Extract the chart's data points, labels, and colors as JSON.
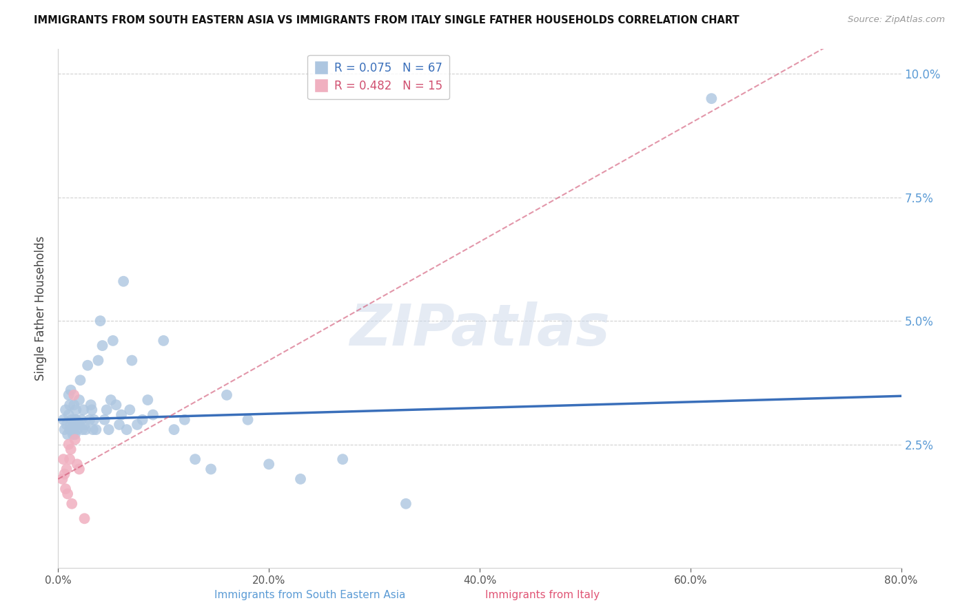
{
  "title": "IMMIGRANTS FROM SOUTH EASTERN ASIA VS IMMIGRANTS FROM ITALY SINGLE FATHER HOUSEHOLDS CORRELATION CHART",
  "source": "Source: ZipAtlas.com",
  "xlabel_blue": "Immigrants from South Eastern Asia",
  "xlabel_pink": "Immigrants from Italy",
  "ylabel": "Single Father Households",
  "blue_R": 0.075,
  "blue_N": 67,
  "pink_R": 0.482,
  "pink_N": 15,
  "xlim": [
    0,
    0.8
  ],
  "ylim": [
    0,
    0.105
  ],
  "yticks": [
    0.025,
    0.05,
    0.075,
    0.1
  ],
  "xticks": [
    0.0,
    0.2,
    0.4,
    0.6,
    0.8
  ],
  "blue_color": "#adc6e0",
  "blue_line_color": "#3a6fba",
  "pink_color": "#f0b0c0",
  "pink_line_color": "#d05070",
  "watermark": "ZIPatlas",
  "blue_x": [
    0.005,
    0.006,
    0.007,
    0.008,
    0.009,
    0.01,
    0.01,
    0.011,
    0.011,
    0.012,
    0.012,
    0.013,
    0.013,
    0.014,
    0.015,
    0.015,
    0.016,
    0.016,
    0.017,
    0.017,
    0.018,
    0.02,
    0.02,
    0.021,
    0.022,
    0.023,
    0.024,
    0.025,
    0.026,
    0.028,
    0.03,
    0.031,
    0.032,
    0.033,
    0.034,
    0.036,
    0.038,
    0.04,
    0.042,
    0.044,
    0.046,
    0.048,
    0.05,
    0.052,
    0.055,
    0.058,
    0.06,
    0.062,
    0.065,
    0.068,
    0.07,
    0.075,
    0.08,
    0.085,
    0.09,
    0.1,
    0.11,
    0.12,
    0.13,
    0.145,
    0.16,
    0.18,
    0.2,
    0.23,
    0.27,
    0.33,
    0.62
  ],
  "blue_y": [
    0.03,
    0.028,
    0.032,
    0.029,
    0.027,
    0.031,
    0.035,
    0.028,
    0.033,
    0.029,
    0.036,
    0.028,
    0.03,
    0.027,
    0.029,
    0.033,
    0.03,
    0.027,
    0.03,
    0.032,
    0.028,
    0.029,
    0.034,
    0.038,
    0.03,
    0.028,
    0.032,
    0.029,
    0.028,
    0.041,
    0.03,
    0.033,
    0.032,
    0.028,
    0.03,
    0.028,
    0.042,
    0.05,
    0.045,
    0.03,
    0.032,
    0.028,
    0.034,
    0.046,
    0.033,
    0.029,
    0.031,
    0.058,
    0.028,
    0.032,
    0.042,
    0.029,
    0.03,
    0.034,
    0.031,
    0.046,
    0.028,
    0.03,
    0.022,
    0.02,
    0.035,
    0.03,
    0.021,
    0.018,
    0.022,
    0.013,
    0.095
  ],
  "pink_x": [
    0.004,
    0.005,
    0.006,
    0.007,
    0.008,
    0.009,
    0.01,
    0.011,
    0.012,
    0.013,
    0.015,
    0.016,
    0.018,
    0.02,
    0.025
  ],
  "pink_y": [
    0.018,
    0.022,
    0.019,
    0.016,
    0.02,
    0.015,
    0.025,
    0.022,
    0.024,
    0.013,
    0.035,
    0.026,
    0.021,
    0.02,
    0.01
  ],
  "grid_color": "#d0d0d0",
  "background_color": "#ffffff",
  "blue_intercept": 0.03,
  "blue_slope": 0.006,
  "pink_intercept": 0.018,
  "pink_slope": 0.12
}
